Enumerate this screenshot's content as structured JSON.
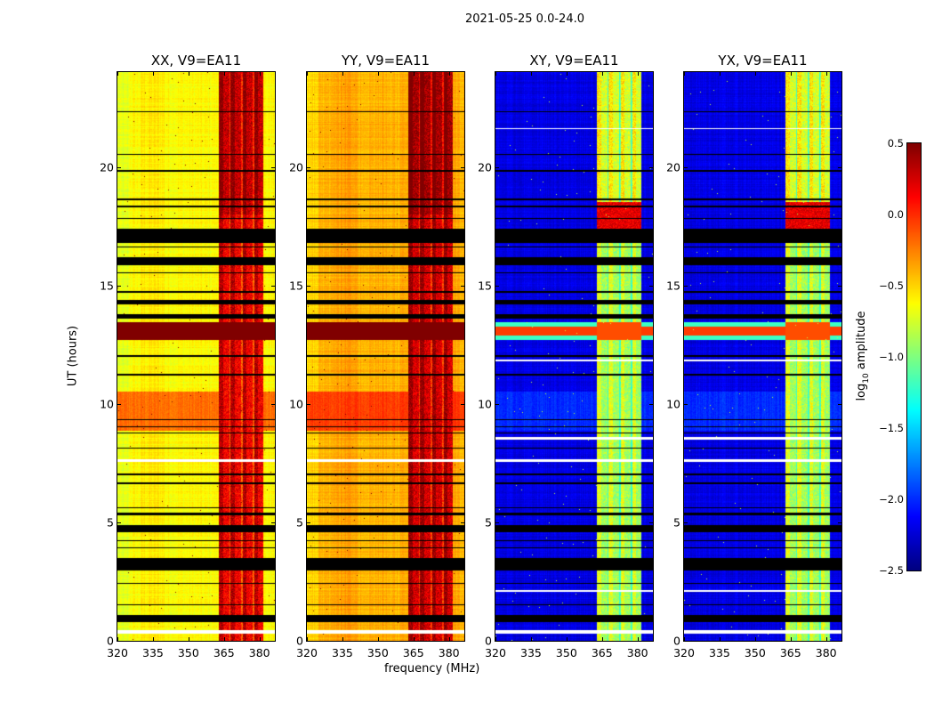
{
  "chart_data": {
    "type": "heatmap",
    "suptitle": "2021-05-25 0.0-24.0",
    "xlabel": "frequency (MHz)",
    "ylabel": "UT (hours)",
    "xlim": [
      320,
      386.5
    ],
    "ylim": [
      0,
      24
    ],
    "xticks": [
      320,
      335,
      350,
      365,
      380
    ],
    "yticks": [
      0,
      5,
      10,
      15,
      20
    ],
    "colorbar": {
      "label_prefix": "log",
      "label_sub": "10",
      "label_suffix": " amplitude",
      "range": [
        -2.5,
        0.5
      ],
      "ticks": [
        "0.5",
        "0.0",
        "−0.5",
        "−1.0",
        "−1.5",
        "−2.0",
        "−2.5"
      ],
      "tick_values": [
        0.5,
        0,
        -0.5,
        -1,
        -1.5,
        -2,
        -2.5
      ],
      "colormap": "jet"
    },
    "band_mhz": [
      363,
      381.5
    ],
    "flagged_hours": [
      [
        0.8,
        1.1
      ],
      [
        1.5,
        1.55
      ],
      [
        2.4,
        2.45
      ],
      [
        2.95,
        3.5
      ],
      [
        3.9,
        3.95
      ],
      [
        4.2,
        4.25
      ],
      [
        4.6,
        4.9
      ],
      [
        5.3,
        5.4
      ],
      [
        5.6,
        5.65
      ],
      [
        6.6,
        6.7
      ],
      [
        7.0,
        7.05
      ],
      [
        8.1,
        8.15
      ],
      [
        8.75,
        8.8
      ],
      [
        9.0,
        9.05
      ],
      [
        9.3,
        9.35
      ],
      [
        11.2,
        11.25
      ],
      [
        12.0,
        12.05
      ],
      [
        13.6,
        13.8
      ],
      [
        14.2,
        14.4
      ],
      [
        14.7,
        14.75
      ],
      [
        15.5,
        15.55
      ],
      [
        15.85,
        16.2
      ],
      [
        16.6,
        16.65
      ],
      [
        16.8,
        17.4
      ],
      [
        17.8,
        17.85
      ],
      [
        18.3,
        18.35
      ],
      [
        18.6,
        18.65
      ],
      [
        19.8,
        19.85
      ],
      [
        20.5,
        20.55
      ],
      [
        22.3,
        22.35
      ]
    ],
    "white_hours": [
      [
        0.3,
        0.45
      ],
      [
        7.55,
        7.65
      ]
    ],
    "panels": [
      {
        "title": "XX, V9=EA11",
        "base": -0.62,
        "band": 0.15,
        "orange_block": -0.2,
        "burst": 0.5,
        "white_hours_extra": []
      },
      {
        "title": "YY, V9=EA11",
        "base": -0.4,
        "band": 0.25,
        "orange_block": -0.05,
        "burst": 0.5,
        "white_hours_extra": []
      },
      {
        "title": "XY, V9=EA11",
        "base": -2.2,
        "band": -0.9,
        "orange_block": -2.0,
        "burst": -0.1,
        "white_hours_extra": [
          [
            2.05,
            2.15
          ],
          [
            8.5,
            8.6
          ],
          [
            11.8,
            11.85
          ],
          [
            21.6,
            21.65
          ]
        ]
      },
      {
        "title": "YX, V9=EA11",
        "base": -2.2,
        "band": -0.9,
        "orange_block": -2.0,
        "burst": -0.1,
        "white_hours_extra": [
          [
            2.05,
            2.15
          ],
          [
            8.5,
            8.6
          ],
          [
            11.8,
            11.85
          ],
          [
            21.6,
            21.65
          ]
        ]
      }
    ]
  }
}
